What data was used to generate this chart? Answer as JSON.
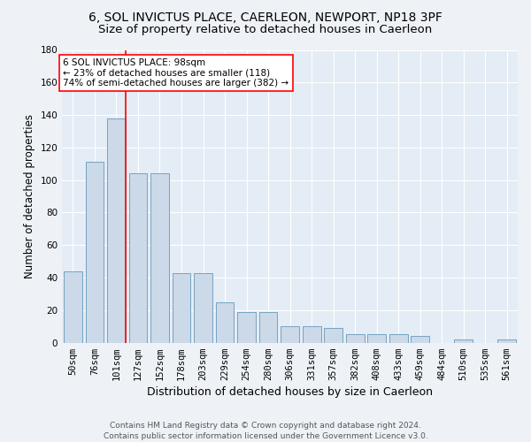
{
  "title1": "6, SOL INVICTUS PLACE, CAERLEON, NEWPORT, NP18 3PF",
  "title2": "Size of property relative to detached houses in Caerleon",
  "xlabel": "Distribution of detached houses by size in Caerleon",
  "ylabel": "Number of detached properties",
  "categories": [
    "50sqm",
    "76sqm",
    "101sqm",
    "127sqm",
    "152sqm",
    "178sqm",
    "203sqm",
    "229sqm",
    "254sqm",
    "280sqm",
    "306sqm",
    "331sqm",
    "357sqm",
    "382sqm",
    "408sqm",
    "433sqm",
    "459sqm",
    "484sqm",
    "510sqm",
    "535sqm",
    "561sqm"
  ],
  "values": [
    44,
    111,
    138,
    104,
    104,
    43,
    43,
    25,
    19,
    19,
    10,
    10,
    9,
    5,
    5,
    5,
    4,
    0,
    2,
    0,
    2
  ],
  "bar_color": "#ccd9e8",
  "bar_edge_color": "#6699bb",
  "red_line_index": 2,
  "annotation_line1": "6 SOL INVICTUS PLACE: 98sqm",
  "annotation_line2": "← 23% of detached houses are smaller (118)",
  "annotation_line3": "74% of semi-detached houses are larger (382) →",
  "ylim": [
    0,
    180
  ],
  "yticks": [
    0,
    20,
    40,
    60,
    80,
    100,
    120,
    140,
    160,
    180
  ],
  "footer_line1": "Contains HM Land Registry data © Crown copyright and database right 2024.",
  "footer_line2": "Contains public sector information licensed under the Government Licence v3.0.",
  "bg_color": "#eef2f7",
  "plot_bg_color": "#e4ecf5",
  "grid_color": "#ffffff",
  "title1_fontsize": 10,
  "title2_fontsize": 9.5,
  "xlabel_fontsize": 9,
  "ylabel_fontsize": 8.5,
  "tick_fontsize": 7.5,
  "annot_fontsize": 7.5,
  "footer_fontsize": 6.5
}
